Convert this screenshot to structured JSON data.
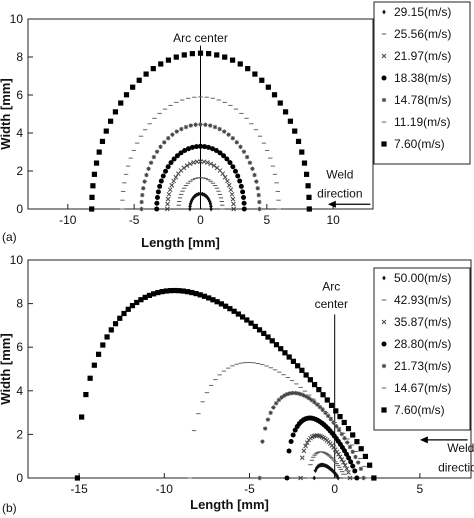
{
  "chart_data": [
    {
      "panel": "(a)",
      "type": "scatter",
      "xlabel": "Length [mm]",
      "ylabel": "Width [mm]",
      "xlim": [
        -13,
        13
      ],
      "ylim": [
        0,
        10
      ],
      "xticks": [
        -10,
        -5,
        0,
        5,
        10
      ],
      "yticks": [
        0,
        2,
        4,
        6,
        8,
        10
      ],
      "legend_position": "right",
      "annotations": [
        {
          "text": "Arc center",
          "at": [
            0,
            8.8
          ]
        },
        {
          "text": "Weld",
          "at": [
            10.5,
            1.6
          ]
        },
        {
          "text": "direction",
          "at": [
            10.5,
            0.6
          ]
        }
      ],
      "arrow": {
        "from": [
          12.8,
          0.25
        ],
        "to": [
          9.6,
          0.25
        ]
      },
      "vertical_line_x": 0,
      "series": [
        {
          "name": "29.15(m/s)",
          "marker": "diamond",
          "color": "#111111",
          "shape": "semicircle",
          "r": 0.8,
          "cx": 0,
          "n": 18
        },
        {
          "name": "25.56(m/s)",
          "marker": "dash",
          "color": "#555555",
          "shape": "semicircle",
          "r": 1.65,
          "cx": 0,
          "n": 26
        },
        {
          "name": "21.97(m/s)",
          "marker": "cross",
          "color": "#444444",
          "shape": "semicircle",
          "r": 2.5,
          "cx": 0,
          "n": 30
        },
        {
          "name": "18.38(m/s)",
          "marker": "circle",
          "color": "#000000",
          "shape": "semicircle",
          "r": 3.3,
          "cx": 0,
          "n": 34
        },
        {
          "name": "14.78(m/s)",
          "marker": "star",
          "color": "#444444",
          "shape": "semicircle",
          "r": 4.45,
          "cx": 0,
          "n": 38
        },
        {
          "name": "11.19(m/s)",
          "marker": "dash",
          "color": "#666666",
          "shape": "semicircle",
          "r": 5.9,
          "cx": 0,
          "n": 40
        },
        {
          "name": "7.60(m/s)",
          "marker": "square",
          "color": "#000000",
          "shape": "semicircle",
          "r": 8.2,
          "cx": 0,
          "n": 42
        }
      ]
    },
    {
      "panel": "(b)",
      "type": "scatter",
      "xlabel": "Length [mm]",
      "ylabel": "Width [mm]",
      "xlim": [
        -18,
        8
      ],
      "ylim": [
        0,
        10
      ],
      "xticks": [
        -15,
        -10,
        -5,
        0,
        5
      ],
      "yticks": [
        0,
        2,
        4,
        6,
        8,
        10
      ],
      "legend_position": "right",
      "annotations": [
        {
          "text": "Arc",
          "at": [
            -0.2,
            8.6
          ]
        },
        {
          "text": "center",
          "at": [
            -0.2,
            7.8
          ]
        },
        {
          "text": "Weld",
          "at": [
            7.4,
            1.2
          ]
        },
        {
          "text": "direction",
          "at": [
            7.4,
            0.3
          ]
        }
      ],
      "arrow": {
        "from": [
          7.8,
          1.75
        ],
        "to": [
          5.0,
          1.75
        ]
      },
      "vertical_line_x": 0,
      "series": [
        {
          "name": "50.00(m/s)",
          "marker": "diamond",
          "color": "#111111",
          "shape": "teardrop",
          "x0": -1.2,
          "tip": 0.2,
          "h": 0.6,
          "n": 20
        },
        {
          "name": "42.93(m/s)",
          "marker": "dash",
          "color": "#555555",
          "shape": "teardrop",
          "x0": -1.5,
          "tip": 0.6,
          "h": 1.2,
          "n": 26
        },
        {
          "name": "35.87(m/s)",
          "marker": "cross",
          "color": "#444444",
          "shape": "teardrop",
          "x0": -2.0,
          "tip": 0.9,
          "h": 1.95,
          "n": 30
        },
        {
          "name": "28.80(m/s)",
          "marker": "circle",
          "color": "#000000",
          "shape": "teardrop",
          "x0": -2.8,
          "tip": 1.3,
          "h": 2.75,
          "n": 34
        },
        {
          "name": "21.73(m/s)",
          "marker": "star",
          "color": "#444444",
          "shape": "teardrop",
          "x0": -4.4,
          "tip": 1.7,
          "h": 3.9,
          "n": 38
        },
        {
          "name": "14.67(m/s)",
          "marker": "dash",
          "color": "#666666",
          "shape": "teardrop",
          "x0": -8.5,
          "tip": 2.0,
          "h": 5.3,
          "n": 42
        },
        {
          "name": "7.60(m/s)",
          "marker": "square",
          "color": "#000000",
          "shape": "teardrop",
          "x0": -15.1,
          "tip": 2.3,
          "h": 8.6,
          "n": 70
        }
      ]
    }
  ]
}
